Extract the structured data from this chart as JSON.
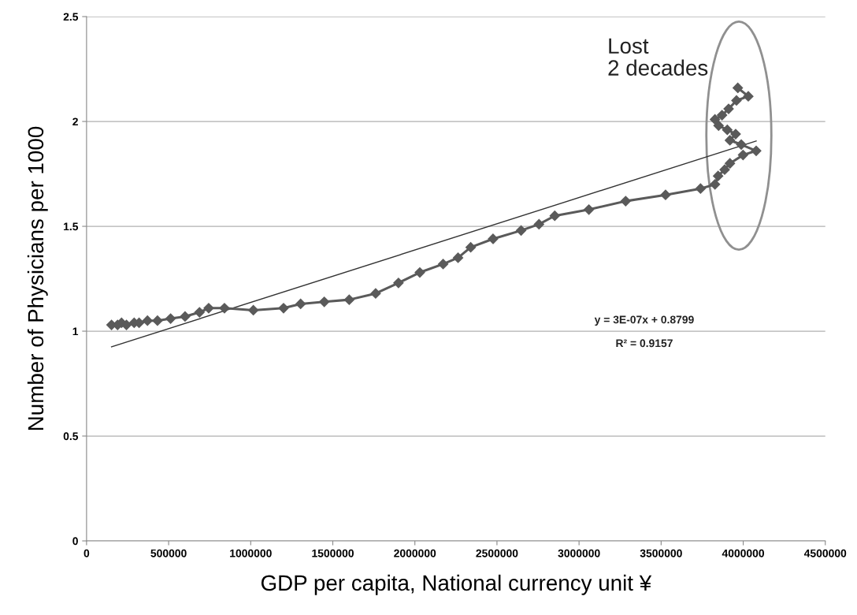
{
  "chart_data": {
    "type": "line",
    "xlabel": "GDP per capita, National currency unit ¥",
    "ylabel": "Number of Physicians per 1000",
    "xlim": [
      0,
      4500000
    ],
    "xticks": [
      0,
      500000,
      1000000,
      1500000,
      2000000,
      2500000,
      3000000,
      3500000,
      4000000,
      4500000
    ],
    "ylim": [
      0,
      2.5
    ],
    "yticks": [
      0,
      0.5,
      1,
      1.5,
      2,
      2.5
    ],
    "grid": "y",
    "marker": "diamond",
    "line_style": "solid",
    "series": [
      {
        "color": "#5a5a5a",
        "x": [
          152000,
          189000,
          213000,
          243000,
          290000,
          320000,
          371000,
          432000,
          512000,
          600000,
          688000,
          744000,
          840000,
          1016000,
          1200000,
          1304000,
          1448000,
          1600000,
          1761000,
          1900000,
          2030000,
          2172000,
          2263000,
          2340000,
          2476000,
          2647000,
          2756000,
          2852000,
          3060000,
          3284000,
          3527000,
          3740000,
          3828000,
          3847000,
          3887000,
          3919000,
          3999000,
          4079000,
          3988000,
          3919000,
          3954000,
          3903000,
          3850000,
          3828000,
          3871000,
          3911000,
          3959000,
          4031000,
          3967000
        ],
        "values": [
          1.03,
          1.03,
          1.04,
          1.03,
          1.04,
          1.04,
          1.05,
          1.05,
          1.06,
          1.07,
          1.09,
          1.11,
          1.11,
          1.1,
          1.11,
          1.13,
          1.14,
          1.15,
          1.18,
          1.23,
          1.28,
          1.32,
          1.35,
          1.4,
          1.44,
          1.48,
          1.51,
          1.55,
          1.58,
          1.62,
          1.65,
          1.68,
          1.7,
          1.74,
          1.77,
          1.8,
          1.84,
          1.86,
          1.89,
          1.91,
          1.94,
          1.96,
          1.98,
          2.01,
          2.03,
          2.06,
          2.1,
          2.12,
          2.16
        ]
      },
      {
        "type": "line",
        "color": "#333333",
        "marker": "none",
        "x": [
          152000,
          4079000
        ],
        "values": [
          0.925,
          1.907
        ]
      }
    ],
    "annotations": [
      "Lost\n2 decades",
      "y = 3E-07x + 0.8799",
      "R² = 0.9157"
    ]
  }
}
